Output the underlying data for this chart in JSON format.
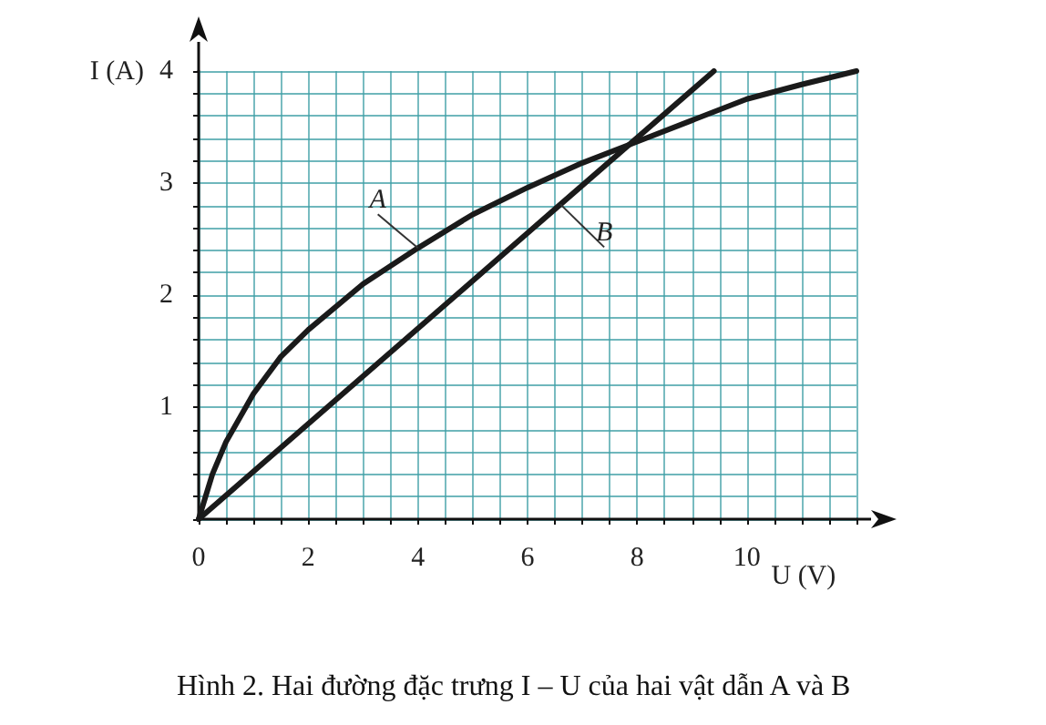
{
  "chart_data": {
    "type": "line",
    "title": "Hình 2. Hai đường đặc trưng I – U của hai vật dẫn A và B",
    "xlabel": "U (V)",
    "ylabel": "I (A)",
    "xlim": [
      0,
      12
    ],
    "xticks": [
      0,
      {
        "value": 0.5,
        "label": null
      },
      {
        "value": 1,
        "label": null
      },
      {
        "value": 1.5,
        "label": null
      },
      2,
      {
        "value": 2.5,
        "label": null
      },
      {
        "value": 3,
        "label": null
      },
      {
        "value": 3.5,
        "label": null
      },
      4,
      {
        "value": 4.5,
        "label": null
      },
      {
        "value": 5,
        "label": null
      },
      {
        "value": 5.5,
        "label": null
      },
      6,
      {
        "value": 6.5,
        "label": null
      },
      {
        "value": 7,
        "label": null
      },
      {
        "value": 7.5,
        "label": null
      },
      8,
      {
        "value": 8.5,
        "label": null
      },
      {
        "value": 9,
        "label": null
      },
      {
        "value": 9.5,
        "label": null
      },
      10,
      {
        "value": 10.5,
        "label": null
      },
      {
        "value": 11,
        "label": null
      },
      {
        "value": 11.5,
        "label": null
      },
      {
        "value": 12,
        "label": null
      }
    ],
    "ylim": [
      0,
      4
    ],
    "yticks": [
      {
        "value": 0,
        "label": null
      },
      {
        "value": 0.2,
        "label": null
      },
      {
        "value": 0.4,
        "label": null
      },
      {
        "value": 0.6,
        "label": null
      },
      {
        "value": 0.8,
        "label": null
      },
      1,
      {
        "value": 1.2,
        "label": null
      },
      {
        "value": 1.4,
        "label": null
      },
      {
        "value": 1.6,
        "label": null
      },
      {
        "value": 1.8,
        "label": null
      },
      2,
      {
        "value": 2.2,
        "label": null
      },
      {
        "value": 2.4,
        "label": null
      },
      {
        "value": 2.6,
        "label": null
      },
      {
        "value": 2.8,
        "label": null
      },
      3,
      {
        "value": 3.2,
        "label": null
      },
      {
        "value": 3.4,
        "label": null
      },
      {
        "value": 3.6,
        "label": null
      },
      {
        "value": 3.8,
        "label": null
      },
      4
    ],
    "grid": true,
    "marker": "none",
    "line_style": "solid",
    "series": [
      {
        "name": "A",
        "color": "#1a1a1a",
        "x": [
          0,
          0.25,
          0.5,
          1,
          1.5,
          2,
          3,
          4,
          5,
          6,
          7,
          8,
          9,
          10,
          11,
          12
        ],
        "values": [
          0,
          0.4,
          0.69,
          1.12,
          1.45,
          1.69,
          2.1,
          2.42,
          2.72,
          2.96,
          3.18,
          3.37,
          3.56,
          3.75,
          3.88,
          4.0
        ]
      },
      {
        "name": "B",
        "color": "#1a1a1a",
        "x": [
          0,
          4.7,
          6.6,
          9.4
        ],
        "values": [
          0,
          2.0,
          2.81,
          4.0
        ]
      }
    ]
  }
}
